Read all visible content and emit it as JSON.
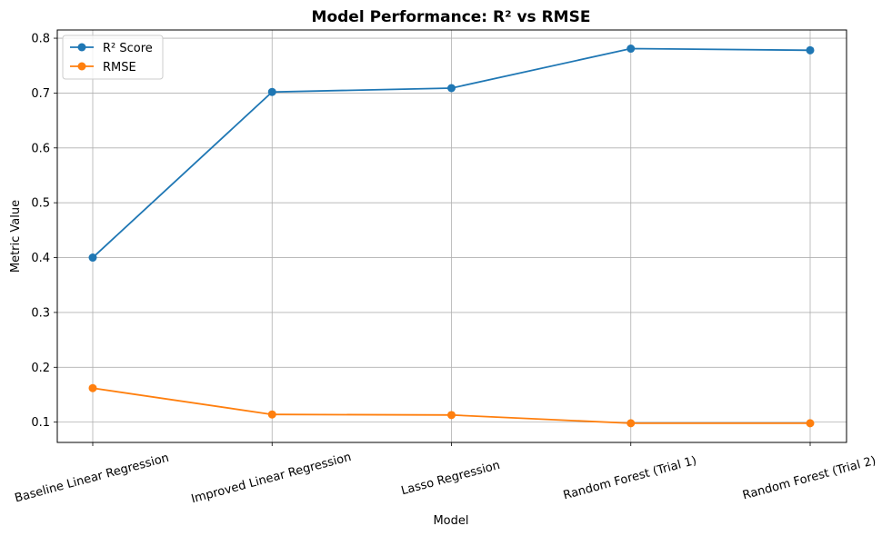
{
  "chart_data": {
    "type": "line",
    "title": "Model Performance: R² vs RMSE",
    "xlabel": "Model",
    "ylabel": "Metric Value",
    "categories": [
      "Baseline Linear Regression",
      "Improved Linear Regression",
      "Lasso Regression",
      "Random Forest (Trial 1)",
      "Random Forest (Trial 2)"
    ],
    "ylim": [
      0.063,
      0.815
    ],
    "yticks": [
      "0.1",
      "0.2",
      "0.3",
      "0.4",
      "0.5",
      "0.6",
      "0.7",
      "0.8"
    ],
    "grid": true,
    "legend_position": "top-left",
    "series": [
      {
        "name": "R² Score",
        "color": "#1f77b4",
        "values": [
          0.4,
          0.702,
          0.709,
          0.781,
          0.778
        ]
      },
      {
        "name": "RMSE",
        "color": "#ff7f0e",
        "values": [
          0.162,
          0.114,
          0.113,
          0.098,
          0.098
        ]
      }
    ]
  }
}
